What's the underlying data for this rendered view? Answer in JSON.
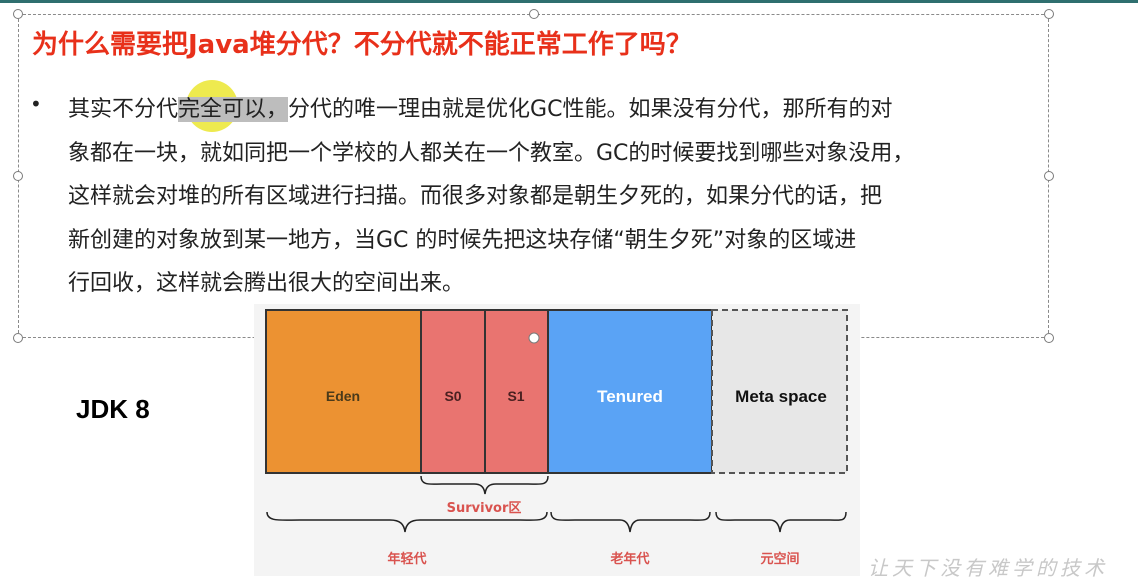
{
  "slide": {
    "title": "为什么需要把Java堆分代？不分代就不能正常工作了吗？",
    "bullet_symbol": "•",
    "paragraph_lines": [
      {
        "pre": "其实不分代",
        "hl": "完全可以，",
        "post": "分代的唯一理由就是优化GC性能。如果没有分代，那所有的对"
      },
      {
        "pre": "象都在一块，就如同把一个学校的人都关在一个教室。GC的时候要找到哪些对象没用，",
        "hl": "",
        "post": ""
      },
      {
        "pre": "这样就会对堆的所有区域进行扫描。而很多对象都是朝生夕死的，如果分代的话，把",
        "hl": "",
        "post": ""
      },
      {
        "pre": "新创建的对象放到某一地方，当GC 的时候先把这块存储“朝生夕死”对象的区域进",
        "hl": "",
        "post": ""
      },
      {
        "pre": "行回收，这样就会腾出很大的空间出来。",
        "hl": "",
        "post": ""
      }
    ]
  },
  "diagram": {
    "jdk_label": "JDK 8",
    "blocks": [
      {
        "label": "Eden",
        "color": "#ec9232"
      },
      {
        "label": "S0",
        "color": "#e97470"
      },
      {
        "label": "S1",
        "color": "#e97470"
      },
      {
        "label": "Tenured",
        "color": "#5aa3f5"
      },
      {
        "label": "Meta space",
        "color": "#e7e7e7"
      }
    ],
    "survivor_label": "Survivor区",
    "group_labels": [
      "年轻代",
      "老年代",
      "元空间"
    ],
    "label_color": "#d9534f"
  },
  "watermark": "让天下没有难学的技术"
}
